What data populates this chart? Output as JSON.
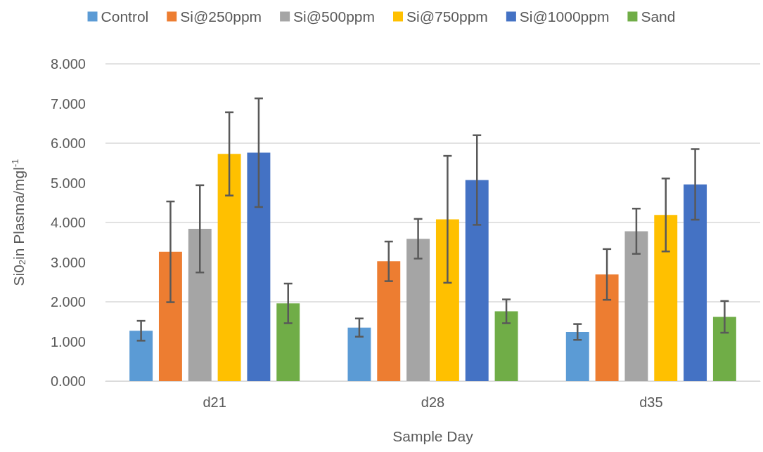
{
  "chart_data": {
    "type": "bar",
    "xlabel": "Sample Day",
    "ylabel": "Si0$_{2}$in Plasma/mgl$^{-1}$",
    "categories": [
      "d21",
      "d28",
      "d35"
    ],
    "series": [
      {
        "name": "Control",
        "color": "#5b9bd5",
        "values": [
          1.27,
          1.35,
          1.24
        ],
        "errors": [
          0.25,
          0.23,
          0.2
        ]
      },
      {
        "name": "Si@250ppm",
        "color": "#ed7d31",
        "values": [
          3.26,
          3.02,
          2.69
        ],
        "errors": [
          1.27,
          0.5,
          0.64
        ]
      },
      {
        "name": "Si@500ppm",
        "color": "#a5a5a5",
        "values": [
          3.84,
          3.59,
          3.78
        ],
        "errors": [
          1.1,
          0.5,
          0.57
        ]
      },
      {
        "name": "Si@750ppm",
        "color": "#ffc000",
        "values": [
          5.73,
          4.08,
          4.19
        ],
        "errors": [
          1.05,
          1.6,
          0.92
        ]
      },
      {
        "name": "Si@1000ppm",
        "color": "#4472c4",
        "values": [
          5.76,
          5.07,
          4.96
        ],
        "errors": [
          1.37,
          1.13,
          0.89
        ]
      },
      {
        "name": "Sand",
        "color": "#70ad47",
        "values": [
          1.96,
          1.76,
          1.62
        ],
        "errors": [
          0.5,
          0.3,
          0.4
        ]
      }
    ],
    "ylim": [
      0,
      8
    ],
    "yticks": [
      {
        "value": 0,
        "label": "0.000"
      },
      {
        "value": 1,
        "label": "1.000"
      },
      {
        "value": 2,
        "label": "2.000"
      },
      {
        "value": 3,
        "label": "3.000"
      },
      {
        "value": 4,
        "label": "4.000"
      },
      {
        "value": 5,
        "label": "5.000"
      },
      {
        "value": 6,
        "label": "6.000"
      },
      {
        "value": 7,
        "label": "7.000"
      },
      {
        "value": 8,
        "label": "8.000"
      }
    ],
    "grid": "y",
    "legend": "top"
  }
}
